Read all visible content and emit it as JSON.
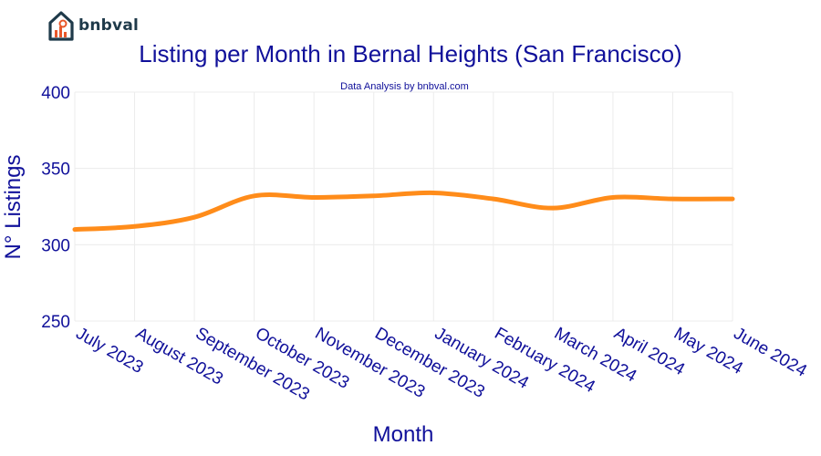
{
  "logo": {
    "text": "bnbval",
    "icon": "house-chart-icon"
  },
  "chart_data": {
    "type": "line",
    "title": "Listing per Month in Bernal Heights (San Francisco)",
    "subtitle": "Data Analysis by bnbval.com",
    "xlabel": "Month",
    "ylabel": "N° Listings",
    "categories": [
      "July 2023",
      "August 2023",
      "September 2023",
      "October 2023",
      "November 2023",
      "December 2023",
      "January 2024",
      "February 2024",
      "March 2024",
      "April 2024",
      "May 2024",
      "June 2024"
    ],
    "series": [
      {
        "values": [
          310,
          312,
          318,
          332,
          331,
          332,
          334,
          330,
          324,
          331,
          330,
          330
        ]
      }
    ],
    "ylim": [
      250,
      400
    ],
    "yticks": [
      250,
      300,
      350,
      400
    ],
    "grid": true,
    "line_color": "#ff8c1a"
  }
}
